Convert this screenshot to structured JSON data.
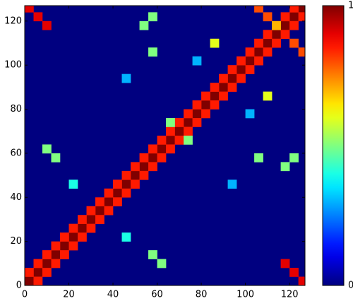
{
  "chart_data": {
    "type": "heatmap",
    "x": [
      0,
      4,
      8,
      12,
      16,
      20,
      24,
      28,
      32,
      36,
      40,
      44,
      48,
      52,
      56,
      60,
      64,
      68,
      72,
      76,
      80,
      84,
      88,
      92,
      96,
      100,
      104,
      108,
      112,
      116,
      120,
      124,
      0,
      4,
      8,
      12,
      16,
      20,
      24,
      28,
      32,
      36,
      40,
      44,
      48,
      52,
      56,
      60,
      64,
      68,
      72,
      76,
      80,
      84,
      88,
      92,
      96,
      100,
      104,
      108,
      112,
      116,
      120,
      4,
      8,
      12,
      16,
      20,
      24,
      28,
      32,
      36,
      40,
      44,
      48,
      52,
      56,
      60,
      64,
      68,
      72,
      76,
      80,
      84,
      88,
      92,
      96,
      100,
      104,
      108,
      112,
      116,
      120,
      124,
      0,
      4,
      8,
      124,
      120,
      116,
      104,
      108,
      112,
      120,
      124,
      108,
      84,
      64,
      72,
      120,
      116,
      56,
      52,
      8,
      12,
      60,
      56,
      20,
      44,
      92,
      44,
      56,
      104,
      76,
      100
    ],
    "y": [
      0,
      4,
      8,
      12,
      16,
      20,
      24,
      28,
      32,
      36,
      40,
      44,
      48,
      52,
      56,
      60,
      64,
      68,
      72,
      76,
      80,
      84,
      88,
      92,
      96,
      100,
      104,
      108,
      112,
      116,
      120,
      124,
      4,
      8,
      12,
      16,
      20,
      24,
      28,
      32,
      36,
      40,
      44,
      48,
      52,
      56,
      60,
      64,
      68,
      72,
      76,
      80,
      84,
      88,
      92,
      96,
      100,
      104,
      108,
      112,
      116,
      120,
      124,
      0,
      4,
      8,
      12,
      16,
      20,
      24,
      28,
      32,
      36,
      40,
      44,
      48,
      52,
      56,
      60,
      64,
      68,
      72,
      76,
      80,
      84,
      88,
      92,
      96,
      100,
      104,
      108,
      112,
      116,
      120,
      124,
      120,
      116,
      0,
      4,
      8,
      124,
      120,
      116,
      108,
      104,
      84,
      108,
      72,
      64,
      56,
      52,
      120,
      116,
      60,
      56,
      8,
      12,
      44,
      20,
      44,
      92,
      104,
      56,
      100,
      76
    ],
    "values": [
      1,
      1,
      1,
      1,
      1,
      1,
      1,
      1,
      1,
      1,
      1,
      1,
      1,
      1,
      1,
      1,
      1,
      1,
      1,
      1,
      1,
      1,
      1,
      1,
      1,
      1,
      1,
      1,
      1,
      1,
      1,
      1,
      0.85,
      0.85,
      0.85,
      0.85,
      0.85,
      0.85,
      0.85,
      0.85,
      0.85,
      0.85,
      0.85,
      0.85,
      0.85,
      0.85,
      0.85,
      0.85,
      0.85,
      0.85,
      0.85,
      0.85,
      0.85,
      0.85,
      0.85,
      0.85,
      0.85,
      0.85,
      0.85,
      0.85,
      0.85,
      0.85,
      0.85,
      0.85,
      0.85,
      0.85,
      0.85,
      0.85,
      0.85,
      0.85,
      0.85,
      0.85,
      0.85,
      0.85,
      0.85,
      0.85,
      0.85,
      0.85,
      0.85,
      0.85,
      0.85,
      0.85,
      0.85,
      0.85,
      0.85,
      0.85,
      0.85,
      0.85,
      0.85,
      0.85,
      0.85,
      0.85,
      0.85,
      0.85,
      0.9,
      0.9,
      0.9,
      0.9,
      0.9,
      0.9,
      0.8,
      0.8,
      0.7,
      0.8,
      0.8,
      0.6,
      0.6,
      0.5,
      0.5,
      0.5,
      0.5,
      0.5,
      0.5,
      0.5,
      0.5,
      0.5,
      0.5,
      0.4,
      0.4,
      0.3,
      0.3,
      0.5,
      0.5,
      0.3,
      0.3
    ],
    "xlim": [
      0,
      127
    ],
    "ylim": [
      0,
      127
    ],
    "xticks": [
      0,
      20,
      40,
      60,
      80,
      100,
      120
    ],
    "yticks": [
      0,
      20,
      40,
      60,
      80,
      100,
      120
    ],
    "clim": [
      0,
      1
    ],
    "colorbar_ticks": [
      0,
      1
    ],
    "colormap": "jet"
  }
}
